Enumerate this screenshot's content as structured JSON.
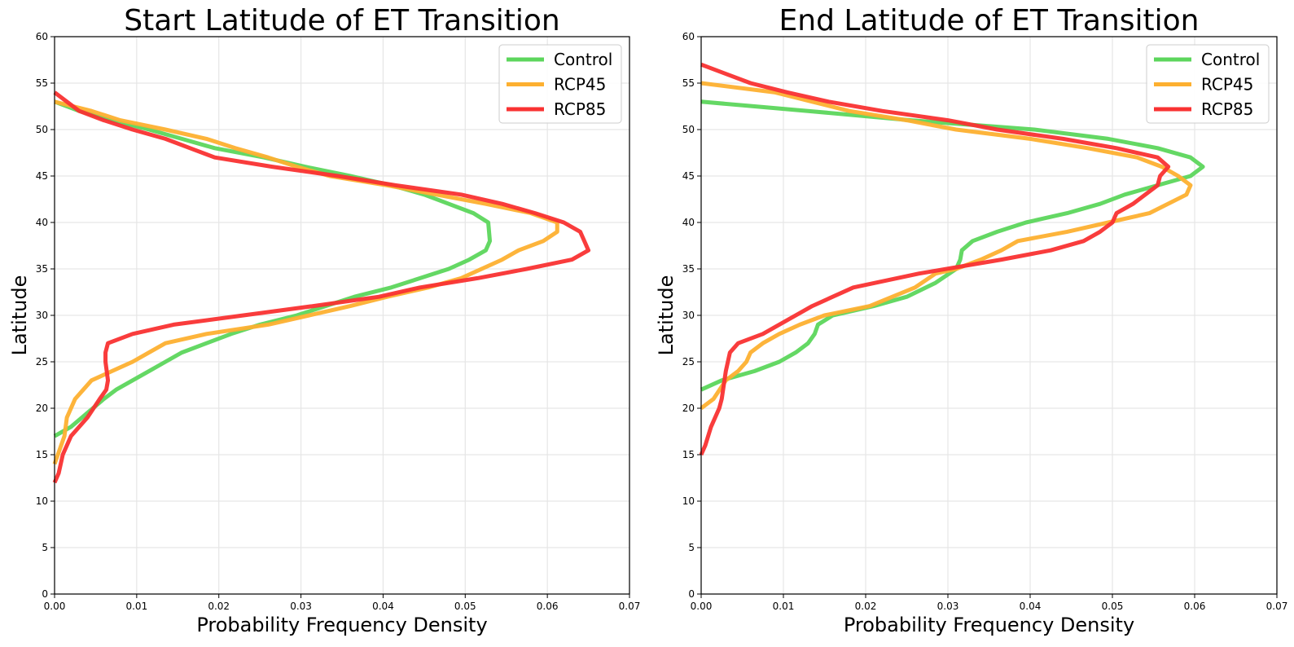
{
  "chart_data": [
    {
      "type": "line",
      "title": "Start Latitude of ET Transition",
      "xlabel": "Probability Frequency Density",
      "ylabel": "Latitude",
      "xlim": [
        0,
        0.07
      ],
      "ylim": [
        0,
        60
      ],
      "xticks": [
        "0.00",
        "0.01",
        "0.02",
        "0.03",
        "0.04",
        "0.05",
        "0.06",
        "0.07"
      ],
      "yticks": [
        "0",
        "5",
        "10",
        "15",
        "20",
        "25",
        "30",
        "35",
        "40",
        "45",
        "50",
        "55",
        "60"
      ],
      "grid": true,
      "legend": "top-right",
      "series": [
        {
          "name": "Control",
          "color": "#5cd65c",
          "points": [
            [
              0.0,
              17
            ],
            [
              0.002,
              18
            ],
            [
              0.004,
              19.5
            ],
            [
              0.006,
              21
            ],
            [
              0.0075,
              22
            ],
            [
              0.0095,
              23
            ],
            [
              0.0115,
              24
            ],
            [
              0.0135,
              25
            ],
            [
              0.0155,
              26
            ],
            [
              0.0185,
              27
            ],
            [
              0.0215,
              28
            ],
            [
              0.025,
              29
            ],
            [
              0.0295,
              30
            ],
            [
              0.033,
              31
            ],
            [
              0.0365,
              32
            ],
            [
              0.041,
              33
            ],
            [
              0.0445,
              34
            ],
            [
              0.048,
              35
            ],
            [
              0.0505,
              36
            ],
            [
              0.0525,
              37
            ],
            [
              0.053,
              38
            ],
            [
              0.0528,
              40
            ],
            [
              0.051,
              41
            ],
            [
              0.048,
              42
            ],
            [
              0.045,
              43
            ],
            [
              0.041,
              44
            ],
            [
              0.036,
              45
            ],
            [
              0.0305,
              46
            ],
            [
              0.0255,
              47
            ],
            [
              0.0195,
              48
            ],
            [
              0.0155,
              49
            ],
            [
              0.0115,
              50
            ],
            [
              0.007,
              51
            ],
            [
              0.003,
              52
            ],
            [
              0.0,
              53
            ]
          ]
        },
        {
          "name": "RCP45",
          "color": "#fdb030",
          "points": [
            [
              0.0,
              14
            ],
            [
              0.0012,
              17
            ],
            [
              0.0015,
              19
            ],
            [
              0.0025,
              21
            ],
            [
              0.0035,
              22
            ],
            [
              0.0045,
              23
            ],
            [
              0.007,
              24
            ],
            [
              0.0095,
              25
            ],
            [
              0.0115,
              26
            ],
            [
              0.0135,
              27
            ],
            [
              0.0185,
              28
            ],
            [
              0.026,
              29
            ],
            [
              0.031,
              30
            ],
            [
              0.036,
              31
            ],
            [
              0.0405,
              32
            ],
            [
              0.0455,
              33
            ],
            [
              0.0495,
              34
            ],
            [
              0.052,
              35
            ],
            [
              0.0545,
              36
            ],
            [
              0.0565,
              37
            ],
            [
              0.0595,
              38
            ],
            [
              0.0612,
              39
            ],
            [
              0.0612,
              40
            ],
            [
              0.058,
              41
            ],
            [
              0.0525,
              42
            ],
            [
              0.0465,
              43
            ],
            [
              0.0405,
              44
            ],
            [
              0.0335,
              45
            ],
            [
              0.0295,
              46
            ],
            [
              0.026,
              47
            ],
            [
              0.022,
              48
            ],
            [
              0.0185,
              49
            ],
            [
              0.0135,
              50
            ],
            [
              0.008,
              51
            ],
            [
              0.0045,
              52
            ],
            [
              0.0,
              53
            ]
          ]
        },
        {
          "name": "RCP85",
          "color": "#f93232",
          "points": [
            [
              0.0,
              12
            ],
            [
              0.0005,
              13
            ],
            [
              0.001,
              15
            ],
            [
              0.002,
              17
            ],
            [
              0.004,
              19
            ],
            [
              0.0055,
              21
            ],
            [
              0.0063,
              22
            ],
            [
              0.0065,
              23
            ],
            [
              0.0062,
              25
            ],
            [
              0.0062,
              26
            ],
            [
              0.0065,
              27
            ],
            [
              0.0095,
              28
            ],
            [
              0.0145,
              29
            ],
            [
              0.023,
              30
            ],
            [
              0.0315,
              31
            ],
            [
              0.0395,
              32
            ],
            [
              0.0445,
              33
            ],
            [
              0.0515,
              34
            ],
            [
              0.0575,
              35
            ],
            [
              0.063,
              36
            ],
            [
              0.065,
              37
            ],
            [
              0.0645,
              38
            ],
            [
              0.064,
              39
            ],
            [
              0.062,
              40
            ],
            [
              0.0585,
              41
            ],
            [
              0.0545,
              42
            ],
            [
              0.0495,
              43
            ],
            [
              0.0415,
              44
            ],
            [
              0.0345,
              45
            ],
            [
              0.0265,
              46
            ],
            [
              0.0195,
              47
            ],
            [
              0.0165,
              48
            ],
            [
              0.0135,
              49
            ],
            [
              0.0095,
              50
            ],
            [
              0.006,
              51
            ],
            [
              0.003,
              52
            ],
            [
              0.0,
              54
            ]
          ]
        }
      ]
    },
    {
      "type": "line",
      "title": "End Latitude of ET Transition",
      "xlabel": "Probability Frequency Density",
      "ylabel": "Latitude",
      "xlim": [
        0,
        0.07
      ],
      "ylim": [
        0,
        60
      ],
      "xticks": [
        "0.00",
        "0.01",
        "0.02",
        "0.03",
        "0.04",
        "0.05",
        "0.06",
        "0.07"
      ],
      "yticks": [
        "0",
        "5",
        "10",
        "15",
        "20",
        "25",
        "30",
        "35",
        "40",
        "45",
        "50",
        "55",
        "60"
      ],
      "grid": true,
      "legend": "top-right",
      "series": [
        {
          "name": "Control",
          "color": "#5cd65c",
          "points": [
            [
              0.0,
              22
            ],
            [
              0.0025,
              23
            ],
            [
              0.0065,
              24
            ],
            [
              0.0095,
              25
            ],
            [
              0.0115,
              26
            ],
            [
              0.013,
              27
            ],
            [
              0.0138,
              28
            ],
            [
              0.0142,
              29
            ],
            [
              0.016,
              30
            ],
            [
              0.021,
              31
            ],
            [
              0.025,
              32
            ],
            [
              0.0285,
              33.5
            ],
            [
              0.031,
              35
            ],
            [
              0.0315,
              36
            ],
            [
              0.0317,
              37
            ],
            [
              0.033,
              38
            ],
            [
              0.036,
              39
            ],
            [
              0.0395,
              40
            ],
            [
              0.0445,
              41
            ],
            [
              0.0485,
              42
            ],
            [
              0.0515,
              43
            ],
            [
              0.0555,
              44
            ],
            [
              0.0595,
              45
            ],
            [
              0.061,
              46
            ],
            [
              0.0595,
              47
            ],
            [
              0.0555,
              48
            ],
            [
              0.0495,
              49
            ],
            [
              0.0405,
              50
            ],
            [
              0.0255,
              51
            ],
            [
              0.013,
              52
            ],
            [
              0.0,
              53
            ]
          ]
        },
        {
          "name": "RCP45",
          "color": "#fdb030",
          "points": [
            [
              0.0,
              20
            ],
            [
              0.0015,
              21
            ],
            [
              0.003,
              23
            ],
            [
              0.0045,
              24
            ],
            [
              0.0055,
              25
            ],
            [
              0.006,
              26
            ],
            [
              0.0075,
              27
            ],
            [
              0.0095,
              28
            ],
            [
              0.012,
              29
            ],
            [
              0.015,
              30
            ],
            [
              0.0205,
              31
            ],
            [
              0.026,
              33
            ],
            [
              0.0285,
              34.5
            ],
            [
              0.031,
              35
            ],
            [
              0.034,
              36
            ],
            [
              0.0365,
              37
            ],
            [
              0.0385,
              38
            ],
            [
              0.0445,
              39
            ],
            [
              0.0495,
              40
            ],
            [
              0.0545,
              41
            ],
            [
              0.059,
              43
            ],
            [
              0.0595,
              44
            ],
            [
              0.058,
              45
            ],
            [
              0.056,
              46
            ],
            [
              0.053,
              47
            ],
            [
              0.047,
              48
            ],
            [
              0.04,
              49
            ],
            [
              0.031,
              50
            ],
            [
              0.025,
              51
            ],
            [
              0.018,
              52
            ],
            [
              0.009,
              54
            ],
            [
              0.0,
              55
            ]
          ]
        },
        {
          "name": "RCP85",
          "color": "#f93232",
          "points": [
            [
              0.0,
              15
            ],
            [
              0.0005,
              16
            ],
            [
              0.0012,
              18
            ],
            [
              0.0022,
              20
            ],
            [
              0.0025,
              21
            ],
            [
              0.003,
              24
            ],
            [
              0.0035,
              26
            ],
            [
              0.0045,
              27
            ],
            [
              0.0075,
              28
            ],
            [
              0.0105,
              29.5
            ],
            [
              0.0135,
              31
            ],
            [
              0.0185,
              33
            ],
            [
              0.0265,
              34.5
            ],
            [
              0.0365,
              36
            ],
            [
              0.0425,
              37
            ],
            [
              0.0465,
              38
            ],
            [
              0.0485,
              39
            ],
            [
              0.05,
              40
            ],
            [
              0.0505,
              41
            ],
            [
              0.0525,
              42
            ],
            [
              0.0555,
              44
            ],
            [
              0.0558,
              45
            ],
            [
              0.0568,
              46
            ],
            [
              0.0555,
              47
            ],
            [
              0.0505,
              48
            ],
            [
              0.044,
              49
            ],
            [
              0.036,
              50
            ],
            [
              0.03,
              51
            ],
            [
              0.022,
              52
            ],
            [
              0.0155,
              53
            ],
            [
              0.0105,
              54
            ],
            [
              0.006,
              55
            ],
            [
              0.0,
              57
            ]
          ]
        }
      ]
    }
  ]
}
